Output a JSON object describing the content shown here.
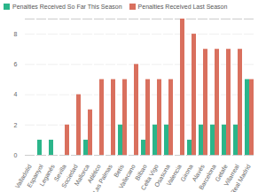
{
  "chart_data": {
    "type": "bar",
    "categories": [
      "Valladolid",
      "Espanyol",
      "Leganés",
      "Sevilla",
      "Sociedad",
      "Mallorca",
      "Atlético",
      "Las Palmas",
      "Betis",
      "Vallecano",
      "Bilbao",
      "Celta Vigo",
      "Osasuna",
      "Valencia",
      "Girona",
      "Alavés",
      "Barcelona",
      "Getafe",
      "Villarreal",
      "Real Madrid"
    ],
    "series": [
      {
        "name": "Penalties Received So Far This Season",
        "color": "#2bb58a",
        "values": [
          0,
          1,
          1,
          0,
          0,
          1,
          0,
          0,
          2,
          0,
          1,
          2,
          2,
          0,
          1,
          2,
          2,
          2,
          2,
          5
        ]
      },
      {
        "name": "Penalties Received Last Season",
        "color": "#d9705e",
        "values": [
          0,
          0,
          0,
          2,
          4,
          3,
          5,
          5,
          5,
          6,
          5,
          5,
          5,
          9,
          8,
          7,
          7,
          7,
          7,
          5
        ]
      }
    ],
    "ylim": [
      0,
      9
    ],
    "yticks": [
      0,
      2,
      4,
      6,
      8
    ],
    "grid": true,
    "legend": "top-left"
  }
}
